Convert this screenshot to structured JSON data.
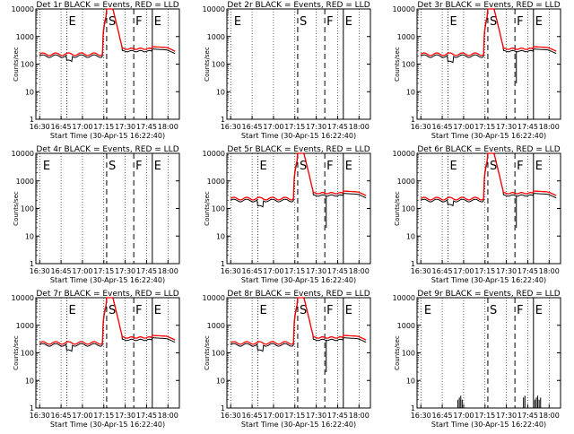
{
  "figure": {
    "x_tick_labels": [
      "16:30",
      "16:45",
      "17:00",
      "17:15",
      "17:30",
      "17:45",
      "18:00"
    ],
    "y_tick_labels": [
      "1",
      "10",
      "100",
      "1000",
      "10000"
    ],
    "xlabel": "Start Time (30-Apr-15 16:22:40)",
    "ylabel": "Counts/sec",
    "colors": {
      "events": "#000000",
      "lld": "#ff0000"
    }
  },
  "chart_data": [
    {
      "type": "line",
      "title": "Det 1r BLACK = Events, RED = LLD",
      "xlabel": "Start Time (30-Apr-15 16:22:40)",
      "ylabel": "Counts/sec",
      "ylim": [
        1,
        10000
      ],
      "y_scale": "log",
      "has_data": true,
      "dip_depth": 0.55,
      "markers": [
        {
          "label": "E",
          "time_min": 19,
          "style": "dotted"
        },
        {
          "label": "S",
          "time_min": 47,
          "style": "dashed"
        },
        {
          "label": "F",
          "time_min": 66,
          "style": "dashed"
        },
        {
          "label": "E",
          "time_min": 79,
          "style": "solid"
        }
      ]
    },
    {
      "type": "line",
      "title": "Det 2r BLACK = Events, RED = LLD",
      "xlabel": "Start Time (30-Apr-15 16:22:40)",
      "ylabel": "Counts/sec",
      "ylim": [
        1,
        10000
      ],
      "y_scale": "log",
      "has_data": false,
      "markers": [
        {
          "label": "E",
          "time_min": 1,
          "style": "dotted"
        },
        {
          "label": "S",
          "time_min": 47,
          "style": "dashed"
        },
        {
          "label": "F",
          "time_min": 66,
          "style": "dashed"
        },
        {
          "label": "E",
          "time_min": 79,
          "style": "solid"
        }
      ]
    },
    {
      "type": "line",
      "title": "Det 3r BLACK = Events, RED = LLD",
      "xlabel": "Start Time (30-Apr-15 16:22:40)",
      "ylabel": "Counts/sec",
      "ylim": [
        1,
        10000
      ],
      "y_scale": "log",
      "has_data": true,
      "dip_depth": 0.5,
      "spike_at": 67,
      "markers": [
        {
          "label": "E",
          "time_min": 19,
          "style": "dotted"
        },
        {
          "label": "S",
          "time_min": 47,
          "style": "dashed"
        },
        {
          "label": "F",
          "time_min": 66,
          "style": "dashed"
        },
        {
          "label": "E",
          "time_min": 79,
          "style": "solid"
        }
      ]
    },
    {
      "type": "line",
      "title": "Det 4r BLACK = Events, RED = LLD",
      "xlabel": "Start Time (30-Apr-15 16:22:40)",
      "ylabel": "Counts/sec",
      "ylim": [
        1,
        10000
      ],
      "y_scale": "log",
      "has_data": false,
      "markers": [
        {
          "label": "E",
          "time_min": 1,
          "style": "dotted"
        },
        {
          "label": "S",
          "time_min": 47,
          "style": "dashed"
        },
        {
          "label": "F",
          "time_min": 66,
          "style": "dashed"
        },
        {
          "label": "E",
          "time_min": 79,
          "style": "solid"
        }
      ]
    },
    {
      "type": "line",
      "title": "Det 5r BLACK = Events, RED = LLD",
      "xlabel": "Start Time (30-Apr-15 16:22:40)",
      "ylabel": "Counts/sec",
      "ylim": [
        1,
        10000
      ],
      "y_scale": "log",
      "has_data": true,
      "dip_depth": 0.5,
      "spike_at": 67,
      "markers": [
        {
          "label": "E",
          "time_min": 19,
          "style": "dotted"
        },
        {
          "label": "S",
          "time_min": 47,
          "style": "dashed"
        },
        {
          "label": "F",
          "time_min": 66,
          "style": "dashed"
        },
        {
          "label": "E",
          "time_min": 79,
          "style": "solid"
        }
      ]
    },
    {
      "type": "line",
      "title": "Det 6r BLACK = Events, RED = LLD",
      "xlabel": "Start Time (30-Apr-15 16:22:40)",
      "ylabel": "Counts/sec",
      "ylim": [
        1,
        10000
      ],
      "y_scale": "log",
      "has_data": true,
      "dip_depth": 0.55,
      "spike_at": 67,
      "markers": [
        {
          "label": "E",
          "time_min": 19,
          "style": "dotted"
        },
        {
          "label": "S",
          "time_min": 47,
          "style": "dashed"
        },
        {
          "label": "F",
          "time_min": 66,
          "style": "dashed"
        },
        {
          "label": "E",
          "time_min": 79,
          "style": "solid"
        }
      ]
    },
    {
      "type": "line",
      "title": "Det 7r BLACK = Events, RED = LLD",
      "xlabel": "Start Time (30-Apr-15 16:22:40)",
      "ylabel": "Counts/sec",
      "ylim": [
        1,
        10000
      ],
      "y_scale": "log",
      "has_data": true,
      "dip_depth": 0.5,
      "markers": [
        {
          "label": "E",
          "time_min": 19,
          "style": "dotted"
        },
        {
          "label": "S",
          "time_min": 47,
          "style": "dashed"
        },
        {
          "label": "F",
          "time_min": 66,
          "style": "dashed"
        },
        {
          "label": "E",
          "time_min": 79,
          "style": "solid"
        }
      ]
    },
    {
      "type": "line",
      "title": "Det 8r BLACK = Events, RED = LLD",
      "xlabel": "Start Time (30-Apr-15 16:22:40)",
      "ylabel": "Counts/sec",
      "ylim": [
        1,
        10000
      ],
      "y_scale": "log",
      "has_data": true,
      "dip_depth": 0.5,
      "spike_at": 67,
      "markers": [
        {
          "label": "E",
          "time_min": 19,
          "style": "dotted"
        },
        {
          "label": "S",
          "time_min": 47,
          "style": "dashed"
        },
        {
          "label": "F",
          "time_min": 66,
          "style": "dashed"
        },
        {
          "label": "E",
          "time_min": 79,
          "style": "solid"
        }
      ]
    },
    {
      "type": "line",
      "title": "Det 9r BLACK = Events, RED = LLD",
      "xlabel": "Start Time (30-Apr-15 16:22:40)",
      "ylabel": "Counts/sec",
      "ylim": [
        1,
        10000
      ],
      "y_scale": "log",
      "has_data": false,
      "spikes_min": [
        26,
        27,
        28,
        29,
        72,
        73,
        80,
        81,
        82,
        83,
        84
      ],
      "markers": [
        {
          "label": "E",
          "time_min": 1,
          "style": "dotted"
        },
        {
          "label": "S",
          "time_min": 47,
          "style": "dashed"
        },
        {
          "label": "F",
          "time_min": 66,
          "style": "dashed"
        },
        {
          "label": "E",
          "time_min": 79,
          "style": "solid"
        }
      ]
    }
  ]
}
